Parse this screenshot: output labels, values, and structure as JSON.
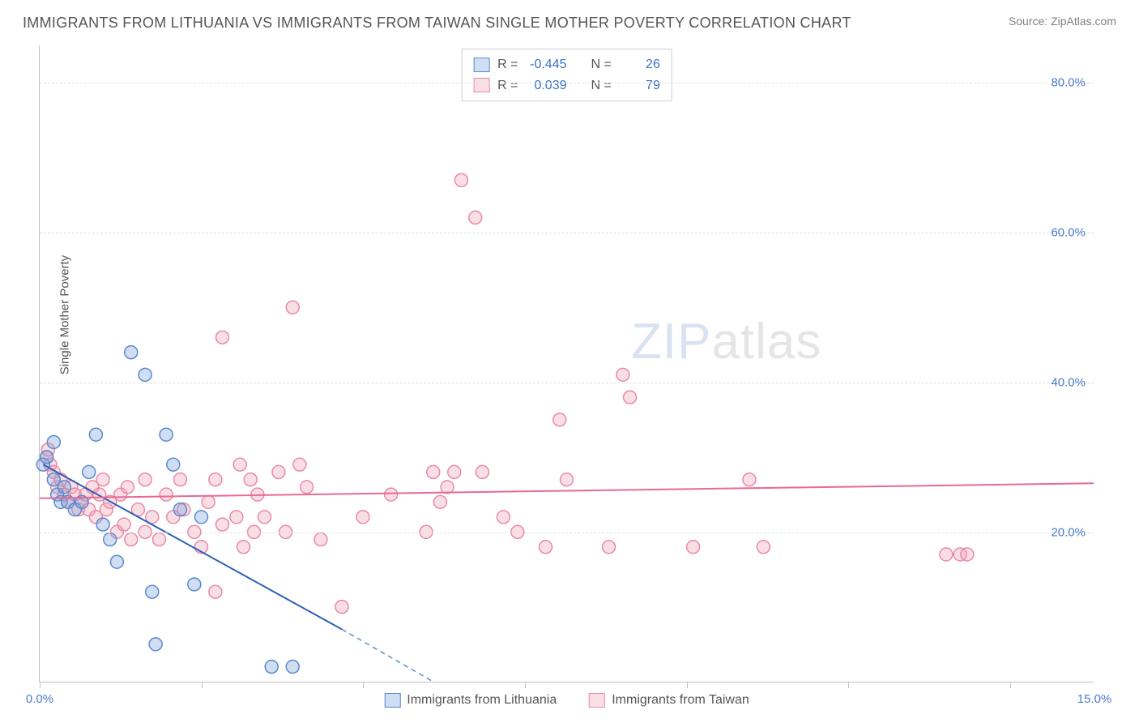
{
  "title": "IMMIGRANTS FROM LITHUANIA VS IMMIGRANTS FROM TAIWAN SINGLE MOTHER POVERTY CORRELATION CHART",
  "source": "Source: ZipAtlas.com",
  "ylabel": "Single Mother Poverty",
  "watermark_left": "ZIP",
  "watermark_right": "atlas",
  "chart": {
    "type": "scatter",
    "xlim": [
      0,
      15
    ],
    "ylim": [
      0,
      85
    ],
    "yticks": [
      20,
      40,
      60,
      80
    ],
    "ytick_labels": [
      "20.0%",
      "40.0%",
      "60.0%",
      "80.0%"
    ],
    "xtick_positions": [
      0,
      2.3,
      4.6,
      6.9,
      9.2,
      11.5,
      13.8
    ],
    "xtick_labels_left": "0.0%",
    "xtick_labels_right": "15.0%",
    "grid_color": "#e0e0e0",
    "background_color": "#ffffff",
    "axis_color": "#c0c0c0",
    "marker_radius": 8,
    "series_blue": {
      "label": "Immigrants from Lithuania",
      "color_fill": "rgba(120,160,220,0.35)",
      "color_stroke": "#5a8acc",
      "R": "-0.445",
      "N": "26",
      "trend": {
        "x1": 0.05,
        "y1": 29,
        "x2_solid": 4.3,
        "y2_solid": 7,
        "x2_dash": 5.6,
        "y2_dash": 0
      },
      "points": [
        [
          0.05,
          29
        ],
        [
          0.1,
          30
        ],
        [
          0.2,
          32
        ],
        [
          0.2,
          27
        ],
        [
          0.25,
          25
        ],
        [
          0.3,
          24
        ],
        [
          0.35,
          26
        ],
        [
          0.4,
          24
        ],
        [
          0.5,
          23
        ],
        [
          0.6,
          24
        ],
        [
          0.7,
          28
        ],
        [
          0.8,
          33
        ],
        [
          0.9,
          21
        ],
        [
          1.0,
          19
        ],
        [
          1.1,
          16
        ],
        [
          1.3,
          44
        ],
        [
          1.5,
          41
        ],
        [
          1.6,
          12
        ],
        [
          1.65,
          5
        ],
        [
          1.8,
          33
        ],
        [
          1.9,
          29
        ],
        [
          2.0,
          23
        ],
        [
          2.2,
          13
        ],
        [
          2.3,
          22
        ],
        [
          3.3,
          2
        ],
        [
          3.6,
          2
        ]
      ]
    },
    "series_pink": {
      "label": "Immigrants from Taiwan",
      "color_fill": "rgba(240,160,180,0.35)",
      "color_stroke": "#e88aa5",
      "R": "0.039",
      "N": "79",
      "trend": {
        "x1": 0,
        "y1": 24.5,
        "x2": 15,
        "y2": 26.5
      },
      "points": [
        [
          0.1,
          30
        ],
        [
          0.12,
          31
        ],
        [
          0.15,
          29
        ],
        [
          0.2,
          28
        ],
        [
          0.25,
          26
        ],
        [
          0.3,
          27
        ],
        [
          0.35,
          25
        ],
        [
          0.4,
          24
        ],
        [
          0.45,
          26
        ],
        [
          0.5,
          25
        ],
        [
          0.55,
          23
        ],
        [
          0.6,
          24
        ],
        [
          0.65,
          25
        ],
        [
          0.7,
          23
        ],
        [
          0.75,
          26
        ],
        [
          0.8,
          22
        ],
        [
          0.85,
          25
        ],
        [
          0.9,
          27
        ],
        [
          0.95,
          23
        ],
        [
          1.0,
          24
        ],
        [
          1.1,
          20
        ],
        [
          1.15,
          25
        ],
        [
          1.2,
          21
        ],
        [
          1.25,
          26
        ],
        [
          1.3,
          19
        ],
        [
          1.4,
          23
        ],
        [
          1.5,
          27
        ],
        [
          1.5,
          20
        ],
        [
          1.6,
          22
        ],
        [
          1.7,
          19
        ],
        [
          1.8,
          25
        ],
        [
          1.9,
          22
        ],
        [
          2.0,
          27
        ],
        [
          2.05,
          23
        ],
        [
          2.2,
          20
        ],
        [
          2.3,
          18
        ],
        [
          2.4,
          24
        ],
        [
          2.5,
          27
        ],
        [
          2.5,
          12
        ],
        [
          2.6,
          21
        ],
        [
          2.6,
          46
        ],
        [
          2.8,
          22
        ],
        [
          2.85,
          29
        ],
        [
          2.9,
          18
        ],
        [
          3.0,
          27
        ],
        [
          3.05,
          20
        ],
        [
          3.1,
          25
        ],
        [
          3.2,
          22
        ],
        [
          3.4,
          28
        ],
        [
          3.5,
          20
        ],
        [
          3.6,
          50
        ],
        [
          3.7,
          29
        ],
        [
          3.8,
          26
        ],
        [
          4.0,
          19
        ],
        [
          4.3,
          10
        ],
        [
          4.6,
          22
        ],
        [
          5.0,
          25
        ],
        [
          5.5,
          20
        ],
        [
          5.6,
          28
        ],
        [
          5.7,
          24
        ],
        [
          5.8,
          26
        ],
        [
          5.9,
          28
        ],
        [
          6.0,
          67
        ],
        [
          6.2,
          62
        ],
        [
          6.3,
          28
        ],
        [
          6.6,
          22
        ],
        [
          6.8,
          20
        ],
        [
          7.2,
          18
        ],
        [
          7.4,
          35
        ],
        [
          7.5,
          27
        ],
        [
          8.1,
          18
        ],
        [
          8.3,
          41
        ],
        [
          8.4,
          38
        ],
        [
          9.3,
          18
        ],
        [
          10.1,
          27
        ],
        [
          10.3,
          18
        ],
        [
          12.9,
          17
        ],
        [
          13.1,
          17
        ],
        [
          13.2,
          17
        ]
      ]
    }
  },
  "stats_labels": {
    "R": "R =",
    "N": "N ="
  }
}
